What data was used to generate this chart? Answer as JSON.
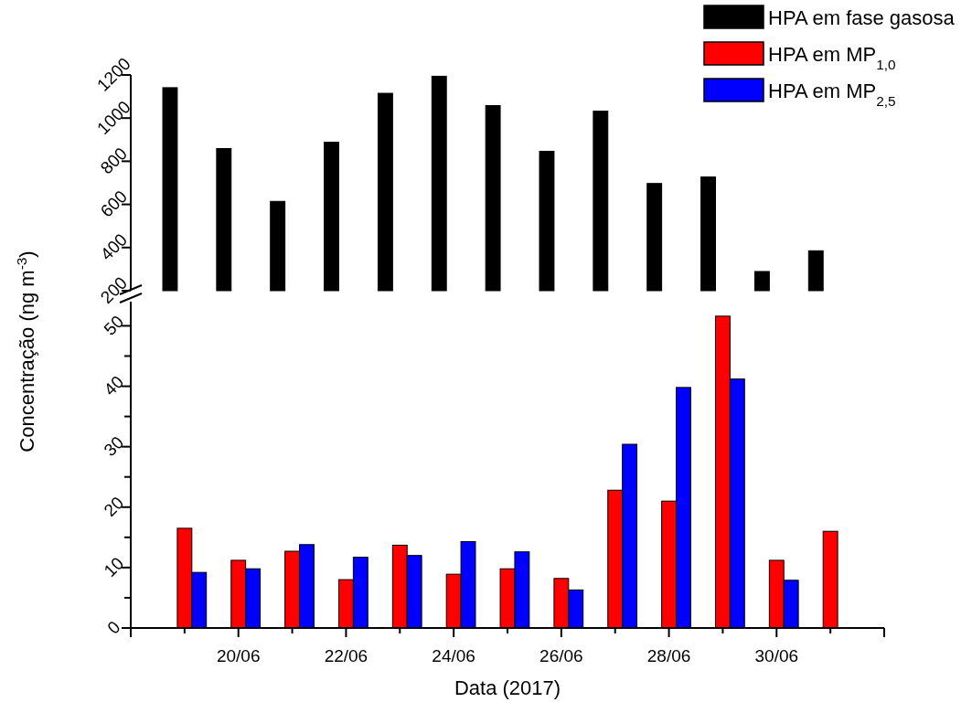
{
  "chart_data": [
    {
      "type": "bar",
      "categories": [
        null,
        null,
        null,
        null,
        null,
        null,
        null,
        null,
        null,
        null,
        null,
        null,
        null
      ],
      "series": [
        {
          "name": "HPA em fase gasosa",
          "color": "#000000",
          "values": [
            1141,
            859,
            614,
            888,
            1115,
            1194,
            1058,
            846,
            1032,
            697,
            727,
            289,
            385
          ]
        }
      ],
      "ylim": [
        200,
        1200
      ],
      "yticks": [
        200,
        400,
        600,
        800,
        1000,
        1200
      ],
      "tick_labels": "y",
      "legend": "top right",
      "grid": false
    },
    {
      "type": "bar",
      "categories": [
        null,
        "20/06",
        null,
        "22/06",
        null,
        "24/06",
        null,
        "26/06",
        null,
        "28/06",
        null,
        "30/06",
        null
      ],
      "series": [
        {
          "name": "HPA em MP$_{1,0}$",
          "color": "#ff0000",
          "values": [
            16.5,
            11.2,
            12.7,
            8.0,
            13.7,
            8.9,
            9.8,
            8.2,
            22.8,
            21.0,
            51.6,
            11.2,
            16.0
          ]
        },
        {
          "name": "HPA em MP$_{2,5}$",
          "color": "#0000ff",
          "values": [
            9.2,
            9.8,
            13.8,
            11.7,
            12.0,
            14.3,
            12.6,
            6.3,
            30.4,
            39.8,
            41.2,
            7.9,
            null
          ]
        }
      ],
      "ylim": [
        0,
        54
      ],
      "yticks": [
        0,
        {
          "value": 5,
          "label": null
        },
        10,
        {
          "value": 15,
          "label": null
        },
        20,
        {
          "value": 25,
          "label": null
        },
        30,
        {
          "value": 35,
          "label": null
        },
        40,
        {
          "value": 45,
          "label": null
        },
        50
      ],
      "xlabel": "Data (2017)",
      "ylabel": "Concentração (ng m$^{-3}$)",
      "legend": "top right",
      "grid": false
    }
  ]
}
